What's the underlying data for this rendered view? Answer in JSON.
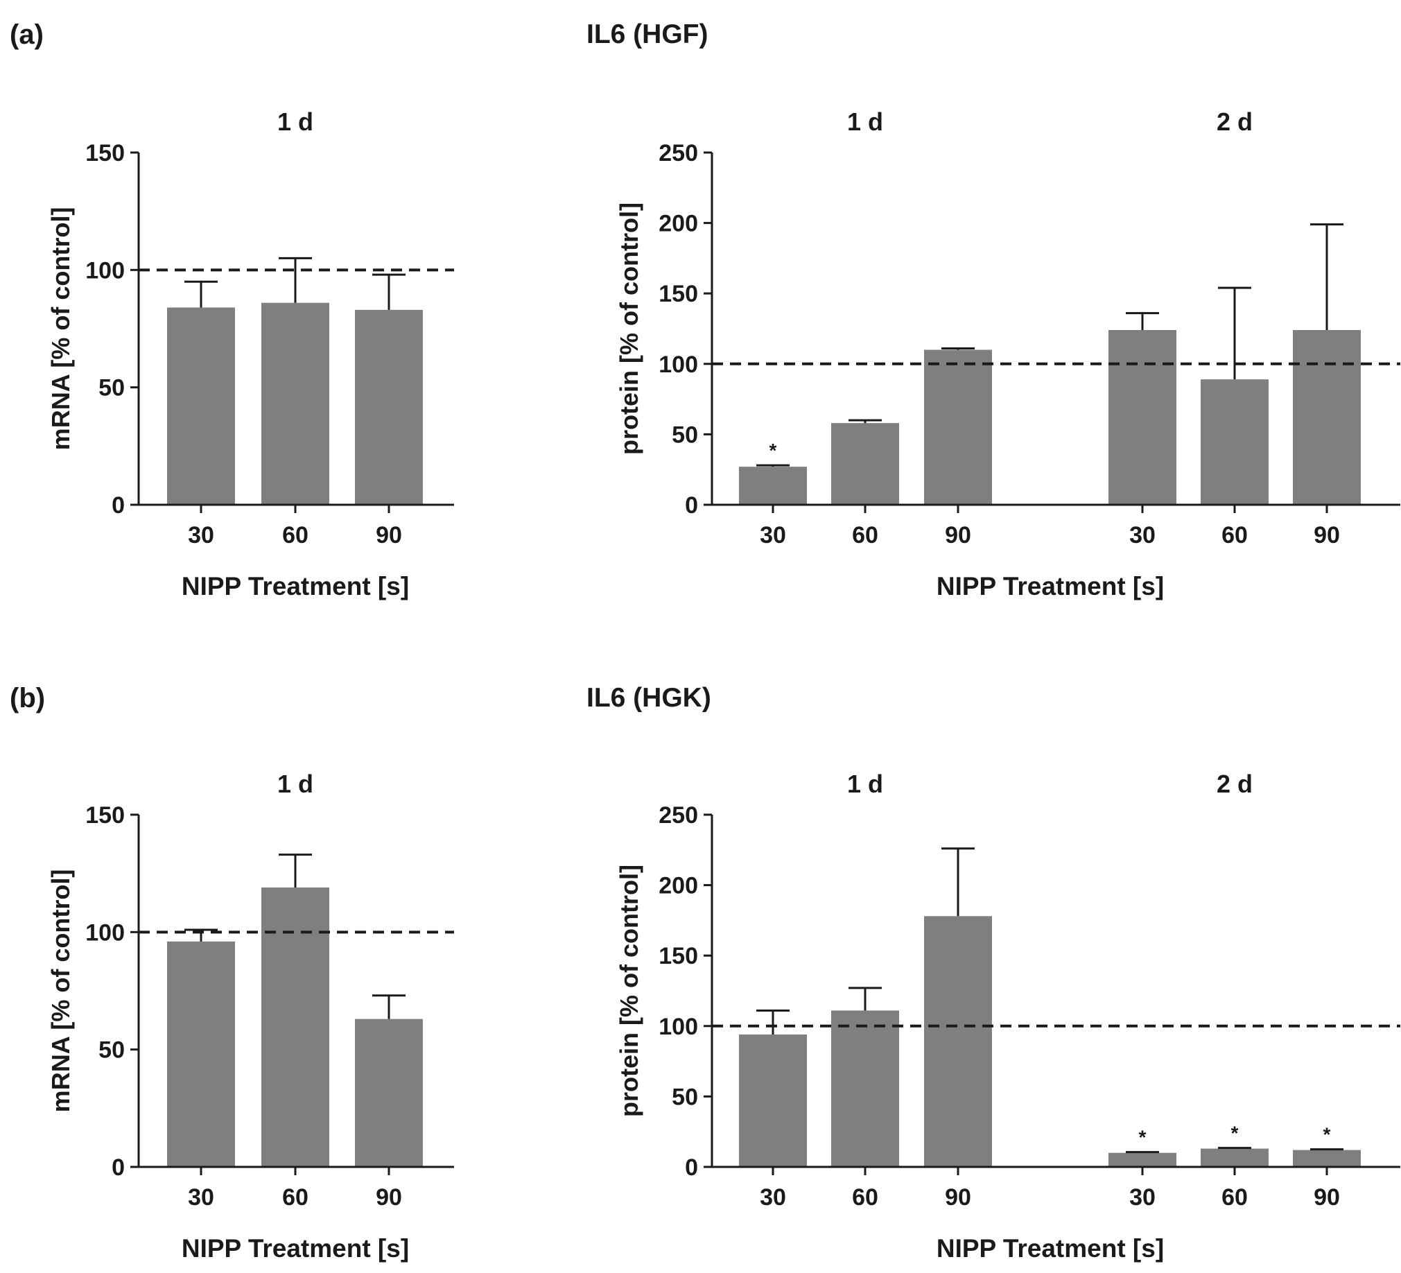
{
  "figure": {
    "panel_a_label": "(a)",
    "panel_a_title": "IL6 (HGF)",
    "panel_b_label": "(b)",
    "panel_b_title": "IL6 (HGK)"
  },
  "colors": {
    "bar": "#7f7f7f",
    "axis": "#1a1a1a"
  },
  "chart_data": [
    {
      "id": "a_mrna",
      "type": "bar",
      "title": "1 d",
      "ylabel": "mRNA [% of control]",
      "xlabel": "NIPP Treatment [s]",
      "ylim": [
        0,
        150
      ],
      "yticks": [
        0,
        50,
        100,
        150
      ],
      "reference_line": 100,
      "groups": [
        {
          "label": "1 d",
          "categories": [
            "30",
            "60",
            "90"
          ],
          "values": [
            84,
            86,
            83
          ],
          "errors": [
            11,
            19,
            15
          ],
          "sig": [
            "",
            "",
            ""
          ]
        }
      ]
    },
    {
      "id": "a_protein",
      "type": "bar",
      "title": "",
      "ylabel": "protein [% of control]",
      "xlabel": "NIPP Treatment [s]",
      "ylim": [
        0,
        250
      ],
      "yticks": [
        0,
        50,
        100,
        150,
        200,
        250
      ],
      "reference_line": 100,
      "groups": [
        {
          "label": "1 d",
          "categories": [
            "30",
            "60",
            "90"
          ],
          "values": [
            27,
            58,
            110
          ],
          "errors": [
            1,
            2,
            1
          ],
          "sig": [
            "*",
            "",
            ""
          ]
        },
        {
          "label": "2 d",
          "categories": [
            "30",
            "60",
            "90"
          ],
          "values": [
            124,
            89,
            124
          ],
          "errors": [
            12,
            65,
            75
          ],
          "sig": [
            "",
            "",
            ""
          ]
        }
      ]
    },
    {
      "id": "b_mrna",
      "type": "bar",
      "title": "1 d",
      "ylabel": "mRNA [% of control]",
      "xlabel": "NIPP Treatment [s]",
      "ylim": [
        0,
        150
      ],
      "yticks": [
        0,
        50,
        100,
        150
      ],
      "reference_line": 100,
      "groups": [
        {
          "label": "1 d",
          "categories": [
            "30",
            "60",
            "90"
          ],
          "values": [
            96,
            119,
            63
          ],
          "errors": [
            5,
            14,
            10
          ],
          "sig": [
            "",
            "",
            ""
          ]
        }
      ]
    },
    {
      "id": "b_protein",
      "type": "bar",
      "title": "",
      "ylabel": "protein [% of control]",
      "xlabel": "NIPP Treatment [s]",
      "ylim": [
        0,
        250
      ],
      "yticks": [
        0,
        50,
        100,
        150,
        200,
        250
      ],
      "reference_line": 100,
      "groups": [
        {
          "label": "1 d",
          "categories": [
            "30",
            "60",
            "90"
          ],
          "values": [
            94,
            111,
            178
          ],
          "errors": [
            17,
            16,
            48
          ],
          "sig": [
            "",
            "",
            ""
          ]
        },
        {
          "label": "2 d",
          "categories": [
            "30",
            "60",
            "90"
          ],
          "values": [
            10,
            13,
            12
          ],
          "errors": [
            0.5,
            0.5,
            0.5
          ],
          "sig": [
            "*",
            "*",
            "*"
          ]
        }
      ]
    }
  ]
}
